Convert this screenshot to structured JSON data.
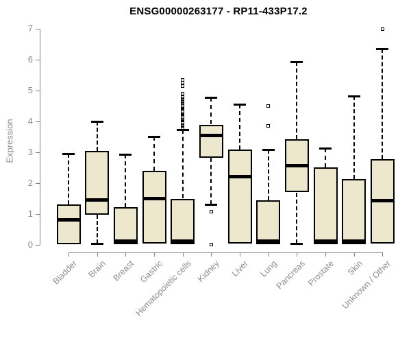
{
  "chart_data": {
    "type": "boxplot",
    "title": "ENSG00000263177 - RP11-433P17.2",
    "xlabel": "",
    "ylabel": "Expression",
    "ylim": [
      0,
      7
    ],
    "yticks": [
      0,
      1,
      2,
      3,
      4,
      5,
      6,
      7
    ],
    "grid": false,
    "legend": "none",
    "categories": [
      "Bladder",
      "Brain",
      "Breast",
      "Gastric",
      "Hematopoietic cells",
      "Kidney",
      "Liver",
      "Lung",
      "Pancreas",
      "Prostate",
      "Skin",
      "Unknown / Other"
    ],
    "series": [
      {
        "name": "Bladder",
        "whisker_low": 0.02,
        "q1": 0.02,
        "median": 0.82,
        "q3": 1.32,
        "whisker_high": 2.95,
        "outliers": []
      },
      {
        "name": "Brain",
        "whisker_low": 0.04,
        "q1": 0.97,
        "median": 1.46,
        "q3": 3.05,
        "whisker_high": 4.0,
        "outliers": []
      },
      {
        "name": "Breast",
        "whisker_low": 0.02,
        "q1": 0.02,
        "median": 0.05,
        "q3": 1.22,
        "whisker_high": 2.93,
        "outliers": []
      },
      {
        "name": "Gastric",
        "whisker_low": 0.03,
        "q1": 0.05,
        "median": 1.49,
        "q3": 2.41,
        "whisker_high": 3.52,
        "outliers": []
      },
      {
        "name": "Hematopoietic cells",
        "whisker_low": 0.02,
        "q1": 0.02,
        "median": 0.06,
        "q3": 1.5,
        "whisker_high": 3.74,
        "outliers": [
          3.8,
          3.85,
          3.9,
          3.95,
          4.0,
          4.05,
          4.1,
          4.15,
          4.2,
          4.25,
          4.3,
          4.35,
          4.4,
          4.45,
          4.5,
          4.55,
          4.6,
          4.65,
          4.72,
          4.8,
          4.9,
          5.15,
          5.25,
          5.35
        ]
      },
      {
        "name": "Kidney",
        "whisker_low": 1.32,
        "q1": 2.82,
        "median": 3.55,
        "q3": 3.9,
        "whisker_high": 4.77,
        "outliers": [
          1.08,
          0.02
        ]
      },
      {
        "name": "Liver",
        "whisker_low": 0.02,
        "q1": 0.04,
        "median": 2.2,
        "q3": 3.08,
        "whisker_high": 4.55,
        "outliers": []
      },
      {
        "name": "Lung",
        "whisker_low": 0.02,
        "q1": 0.02,
        "median": 0.05,
        "q3": 1.44,
        "whisker_high": 3.1,
        "outliers": [
          4.5,
          3.85
        ]
      },
      {
        "name": "Pancreas",
        "whisker_low": 0.04,
        "q1": 1.7,
        "median": 2.57,
        "q3": 3.42,
        "whisker_high": 5.93,
        "outliers": []
      },
      {
        "name": "Prostate",
        "whisker_low": 0.02,
        "q1": 0.02,
        "median": 0.06,
        "q3": 2.52,
        "whisker_high": 3.13,
        "outliers": []
      },
      {
        "name": "Skin",
        "whisker_low": 0.02,
        "q1": 0.02,
        "median": 0.06,
        "q3": 2.13,
        "whisker_high": 4.83,
        "outliers": []
      },
      {
        "name": "Unknown / Other",
        "whisker_low": 0.02,
        "q1": 0.04,
        "median": 1.44,
        "q3": 2.77,
        "whisker_high": 6.35,
        "outliers": [
          6.98
        ]
      }
    ],
    "colors": {
      "box_fill": "#ece7cd",
      "box_border": "#000000",
      "median": "#000000",
      "axis": "#808080",
      "tick_label": "#8c8c8c",
      "title": "#000000",
      "background": "#ffffff"
    }
  }
}
